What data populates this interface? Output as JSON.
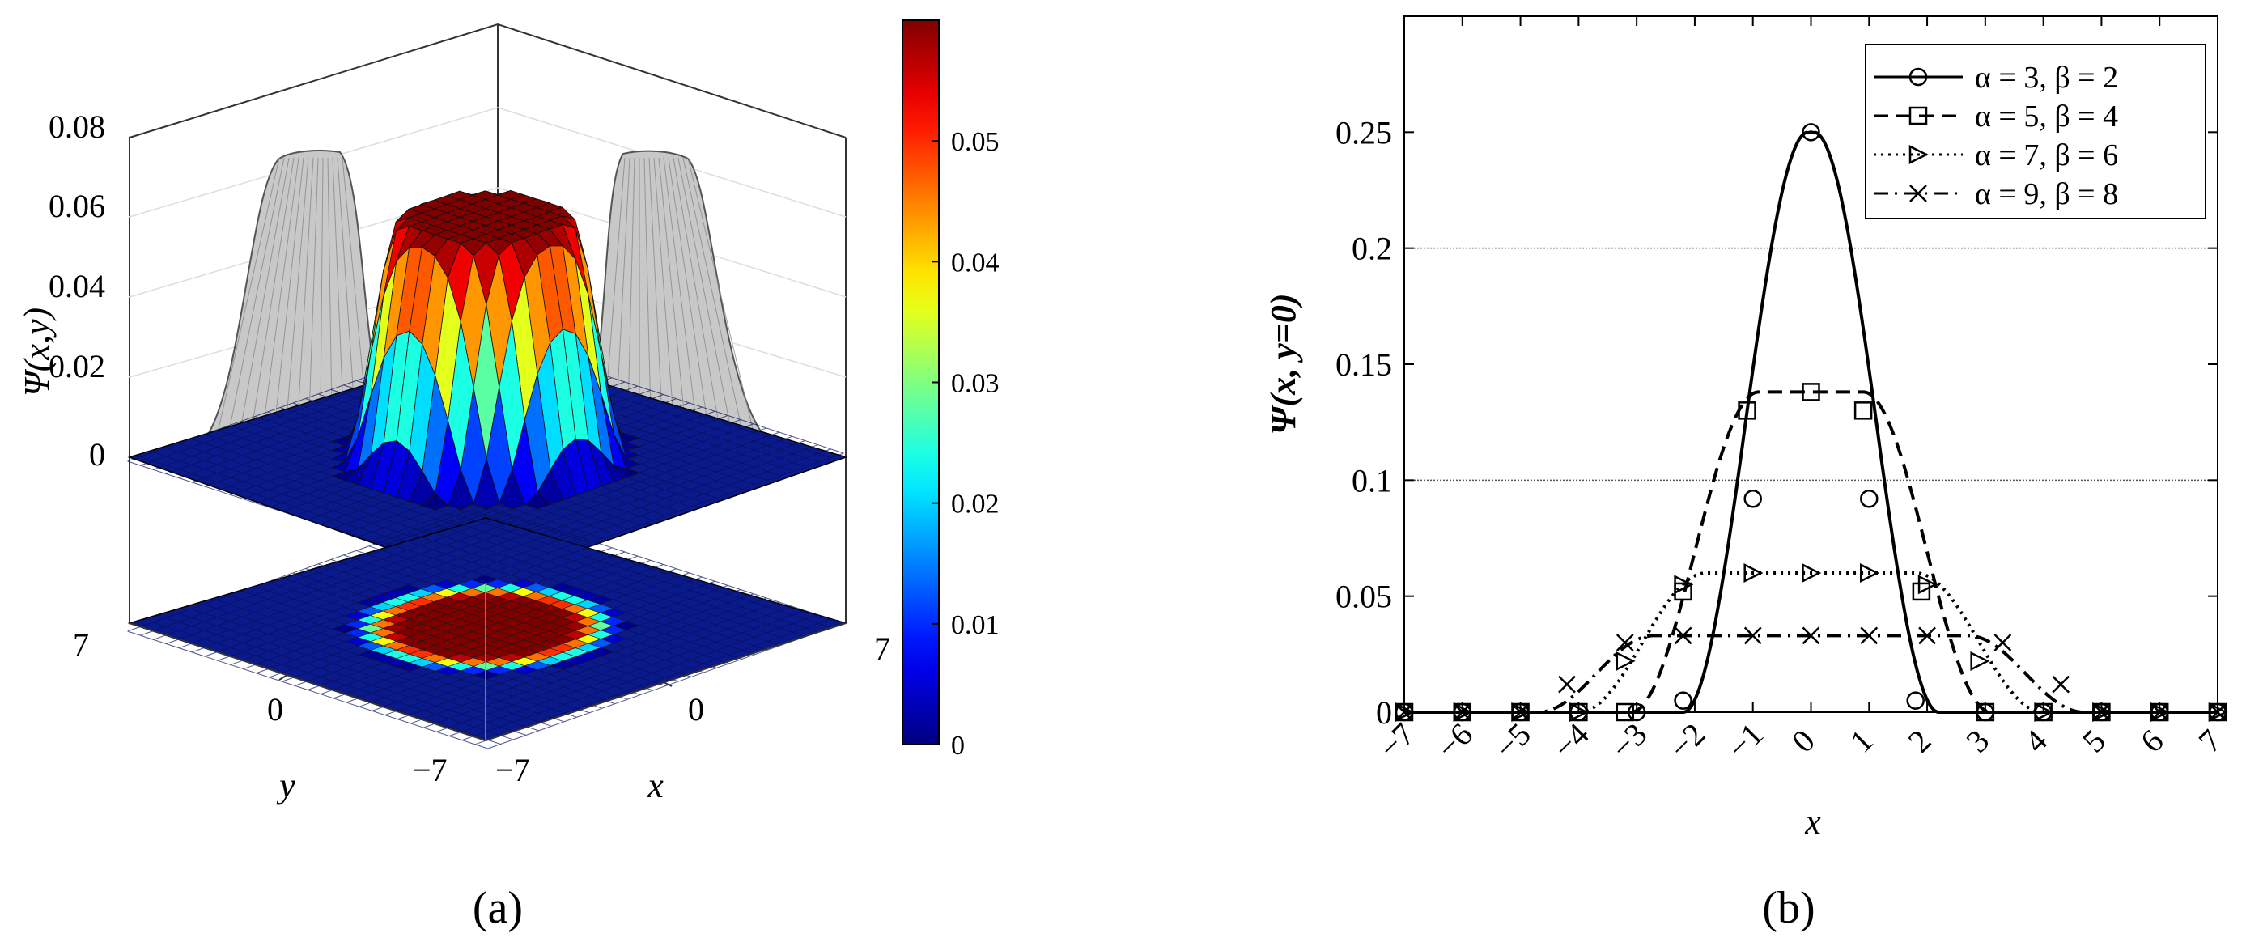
{
  "panel_a": {
    "panel_label": "(a)",
    "zlabel": "Ψ(x,y)",
    "xlabel": "x",
    "ylabel": "y",
    "colorbar_ticks": [
      "0",
      "0.01",
      "0.02",
      "0.03",
      "0.04",
      "0.05"
    ],
    "colorbar_range": [
      0,
      0.06
    ],
    "colormap": "jet",
    "gray_projection_color": "#c8c8c8"
  },
  "panel_b": {
    "panel_label": "(b)",
    "ylabel": "Ψ(x, y=0)",
    "xlabel": "x"
  },
  "chart_data": [
    {
      "type": "surface",
      "zlabel": "Ψ(x,y)",
      "xlabel": "x",
      "ylabel": "y",
      "xlim": [
        -7,
        7
      ],
      "ylim": [
        -7,
        7
      ],
      "zlim": [
        0,
        0.08
      ],
      "x_ticks": [
        -7,
        0,
        7
      ],
      "y_ticks": [
        -7,
        0,
        7
      ],
      "z_ticks": [
        0,
        0.02,
        0.04,
        0.06,
        0.08
      ],
      "z_tick_labels": [
        "0",
        "0.02",
        "0.04",
        "0.06",
        "0.08"
      ],
      "peak_value": 0.06,
      "plateau_radius": 2.5,
      "support_radius": 4,
      "colorbar": {
        "min": 0,
        "max": 0.06,
        "ticks": [
          0,
          0.01,
          0.02,
          0.03,
          0.04,
          0.05
        ]
      },
      "projections": [
        "contour-map (z below)",
        "gray side profiles"
      ]
    },
    {
      "type": "line",
      "ylabel": "Ψ(x, y=0)",
      "xlabel": "x",
      "xlim": [
        -7,
        7
      ],
      "ylim": [
        0,
        0.3
      ],
      "x_ticks": [
        "−7",
        "−6",
        "−5",
        "−4",
        "−3",
        "−2",
        "−1",
        "0",
        "1",
        "2",
        "3",
        "4",
        "5",
        "6",
        "7"
      ],
      "y_ticks": [
        "0",
        "0.05",
        "0.1",
        "0.15",
        "0.2",
        "0.25"
      ],
      "grid_y": [
        0.1,
        0.2
      ],
      "legend": {
        "position": "top-right"
      },
      "series": [
        {
          "name": "α = 3, β = 2",
          "alpha": 3,
          "beta": 2,
          "peak": 0.25,
          "marker": "circle",
          "dash": "solid",
          "markers_x": [
            -7,
            -6,
            -5,
            -4,
            -3,
            -2.2,
            -1,
            0,
            1,
            1.8,
            3,
            4,
            5,
            6,
            7
          ],
          "markers_y": [
            0,
            0,
            0,
            0,
            0,
            0.005,
            0.092,
            0.25,
            0.092,
            0.005,
            0,
            0,
            0,
            0,
            0
          ]
        },
        {
          "name": "α = 5, β = 4",
          "alpha": 5,
          "beta": 4,
          "peak": 0.138,
          "marker": "square",
          "dash": "dashed",
          "markers_x": [
            -7,
            -6,
            -5,
            -4,
            -3.2,
            -2.2,
            -1.1,
            0,
            0.9,
            1.9,
            3,
            4,
            5,
            6,
            7
          ],
          "markers_y": [
            0,
            0,
            0,
            0,
            0,
            0.052,
            0.13,
            0.138,
            0.13,
            0.052,
            0,
            0,
            0,
            0,
            0
          ]
        },
        {
          "name": "α = 7, β = 6",
          "alpha": 7,
          "beta": 6,
          "peak": 0.06,
          "marker": "triangle-right",
          "dash": "dotted",
          "markers_x": [
            -7,
            -6,
            -5,
            -4,
            -3.2,
            -2.2,
            -1,
            0,
            1,
            2,
            2.9,
            4,
            5,
            6,
            7
          ],
          "markers_y": [
            0,
            0,
            0,
            0,
            0.022,
            0.055,
            0.06,
            0.06,
            0.06,
            0.055,
            0.022,
            0,
            0,
            0,
            0
          ]
        },
        {
          "name": "α = 9, β = 8",
          "alpha": 9,
          "beta": 8,
          "peak": 0.033,
          "marker": "x",
          "dash": "dashdot",
          "markers_x": [
            -7,
            -6,
            -5,
            -4.2,
            -3.2,
            -2.2,
            -1,
            0,
            1,
            2,
            3.3,
            4.3,
            5,
            6,
            7
          ],
          "markers_y": [
            0,
            0,
            0,
            0.012,
            0.03,
            0.033,
            0.033,
            0.033,
            0.033,
            0.033,
            0.03,
            0.012,
            0,
            0,
            0
          ]
        }
      ]
    }
  ]
}
